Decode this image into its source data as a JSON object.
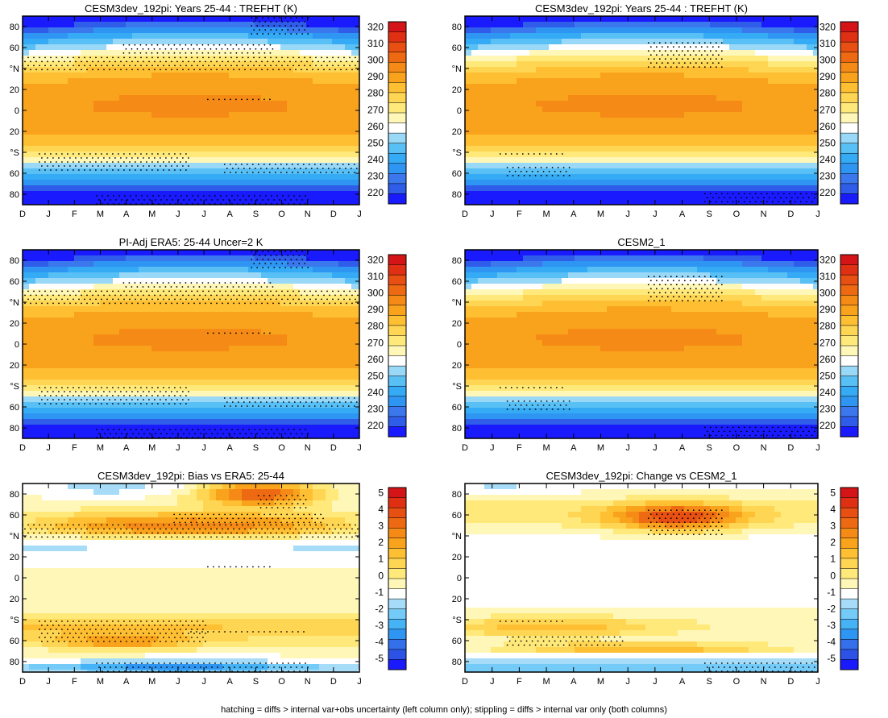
{
  "footer_note": "hatching = diffs > internal var+obs uncertainty (left column only); stippling = diffs > internal var only (both columns)",
  "colors": {
    "temp_fill": [
      "#1a1aff",
      "#2f5ce8",
      "#3b78ee",
      "#2f95f2",
      "#35aaf5",
      "#59c0f6",
      "#9ad8f8",
      "#ffffff",
      "#fff7b8",
      "#ffe97a",
      "#ffd653",
      "#ffbf33",
      "#f9a31d",
      "#f58a16",
      "#ee6a12",
      "#e84f12",
      "#e03014",
      "#d41417"
    ],
    "diff_fill": [
      "#1a1aff",
      "#2c52e6",
      "#3570eb",
      "#2f95f2",
      "#45b3f5",
      "#74cbf7",
      "#a6dcf8",
      "#ffffff",
      "#fff7b8",
      "#ffe97a",
      "#ffd653",
      "#ffbf33",
      "#f9a31d",
      "#f58a16",
      "#ee6a12",
      "#e84f12",
      "#e03014",
      "#d41417"
    ]
  },
  "axes": {
    "months": [
      "D",
      "J",
      "F",
      "M",
      "A",
      "M",
      "J",
      "J",
      "A",
      "S",
      "O",
      "N",
      "D",
      "J"
    ],
    "lat_ticks": [
      "80",
      "60",
      "°N",
      "20",
      "0",
      "20",
      "°S",
      "60",
      "80"
    ]
  },
  "colorbars": {
    "temperature": [
      "320",
      "310",
      "300",
      "290",
      "280",
      "270",
      "260",
      "250",
      "240",
      "230",
      "220"
    ],
    "difference": [
      "5",
      "4",
      "3",
      "2",
      "1",
      "0",
      "-1",
      "-2",
      "-3",
      "-4",
      "-5"
    ]
  },
  "chart_data": [
    {
      "id": "p1",
      "type": "heatmap",
      "title": "CESM3dev_192pi: Years 25-44 : TREFHT (K)",
      "field": "temp",
      "variant": "model",
      "stipple": "left_top",
      "x": "month (D-J)",
      "y": "latitude 90S-90N",
      "zlim": [
        220,
        320
      ],
      "contour_interval": 5
    },
    {
      "id": "p2",
      "type": "heatmap",
      "title": "CESM3dev_192pi: Years 25-44 : TREFHT (K)",
      "field": "temp",
      "variant": "model",
      "stipple": "right",
      "x": "month (D-J)",
      "y": "latitude 90S-90N",
      "zlim": [
        220,
        320
      ],
      "contour_interval": 5
    },
    {
      "id": "p3",
      "type": "heatmap",
      "title": "PI-Adj ERA5: 25-44 Uncer=2 K",
      "field": "temp",
      "variant": "obs",
      "stipple": "left_mid",
      "x": "month (D-J)",
      "y": "latitude 90S-90N",
      "zlim": [
        220,
        320
      ],
      "contour_interval": 5
    },
    {
      "id": "p4",
      "type": "heatmap",
      "title": "CESM2_1",
      "field": "temp",
      "variant": "cesm2",
      "stipple": "right",
      "x": "month (D-J)",
      "y": "latitude 90S-90N",
      "zlim": [
        220,
        320
      ],
      "contour_interval": 5
    },
    {
      "id": "p5",
      "type": "heatmap",
      "title": "CESM3dev_192pi: Bias vs ERA5: 25-44",
      "field": "bias",
      "variant": "bias",
      "stipple": "left_bot",
      "x": "month (D-J)",
      "y": "latitude 90S-90N",
      "zlim": [
        -5,
        5
      ],
      "contour_interval": 0.5
    },
    {
      "id": "p6",
      "type": "heatmap",
      "title": "CESM3dev_192pi: Change vs CESM2_1",
      "field": "change",
      "variant": "change",
      "stipple": "right_bot",
      "x": "month (D-J)",
      "y": "latitude 90S-90N",
      "zlim": [
        -5,
        5
      ],
      "contour_interval": 0.5
    }
  ]
}
